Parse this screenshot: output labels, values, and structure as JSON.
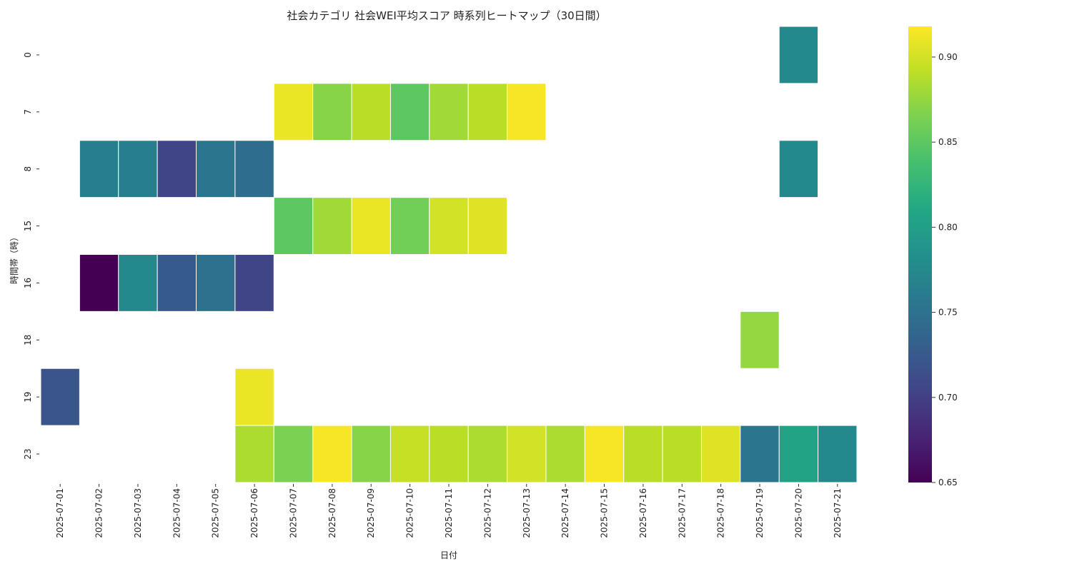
{
  "chart_data": {
    "type": "heatmap",
    "title": "社会カテゴリ 社会WEI平均スコア 時系列ヒートマップ（30日間）",
    "xlabel": "日付",
    "ylabel": "時間帯（時）",
    "x": [
      "2025-07-01",
      "2025-07-02",
      "2025-07-03",
      "2025-07-04",
      "2025-07-05",
      "2025-07-06",
      "2025-07-07",
      "2025-07-08",
      "2025-07-09",
      "2025-07-10",
      "2025-07-11",
      "2025-07-12",
      "2025-07-13",
      "2025-07-14",
      "2025-07-15",
      "2025-07-16",
      "2025-07-17",
      "2025-07-18",
      "2025-07-19",
      "2025-07-20",
      "2025-07-21"
    ],
    "y": [
      "0",
      "7",
      "8",
      "15",
      "16",
      "18",
      "19",
      "23"
    ],
    "values": [
      [
        null,
        null,
        null,
        null,
        null,
        null,
        null,
        null,
        null,
        null,
        null,
        null,
        null,
        null,
        null,
        null,
        null,
        null,
        null,
        0.775,
        null
      ],
      [
        null,
        null,
        null,
        null,
        null,
        null,
        0.91,
        0.87,
        0.89,
        0.85,
        0.88,
        0.89,
        0.915,
        null,
        null,
        null,
        null,
        null,
        null,
        null,
        null
      ],
      [
        null,
        0.765,
        0.765,
        0.705,
        0.755,
        0.745,
        null,
        null,
        null,
        null,
        null,
        null,
        null,
        null,
        null,
        null,
        null,
        null,
        null,
        0.775,
        null
      ],
      [
        null,
        null,
        null,
        null,
        null,
        null,
        0.85,
        0.88,
        0.91,
        0.86,
        0.9,
        0.905,
        null,
        null,
        null,
        null,
        null,
        null,
        null,
        null,
        null
      ],
      [
        null,
        0.65,
        0.775,
        0.725,
        0.75,
        0.705,
        null,
        null,
        null,
        null,
        null,
        null,
        null,
        null,
        null,
        null,
        null,
        null,
        null,
        null,
        null
      ],
      [
        null,
        null,
        null,
        null,
        null,
        null,
        null,
        null,
        null,
        null,
        null,
        null,
        null,
        null,
        null,
        null,
        null,
        null,
        0.875,
        null,
        null
      ],
      [
        0.72,
        null,
        null,
        null,
        null,
        0.91,
        null,
        null,
        null,
        null,
        null,
        null,
        null,
        null,
        null,
        null,
        null,
        null,
        null,
        null,
        null
      ],
      [
        null,
        null,
        null,
        null,
        null,
        0.885,
        0.865,
        0.915,
        0.87,
        0.895,
        0.89,
        0.885,
        0.9,
        0.885,
        0.915,
        0.89,
        0.89,
        0.905,
        0.755,
        0.805,
        0.775
      ]
    ],
    "colorbar": {
      "colormap": "viridis",
      "vmin": 0.65,
      "vmax": 0.918,
      "ticks": [
        "0.65",
        "0.70",
        "0.75",
        "0.80",
        "0.85",
        "0.90"
      ]
    },
    "grid": false,
    "legend": "colorbar-right"
  }
}
